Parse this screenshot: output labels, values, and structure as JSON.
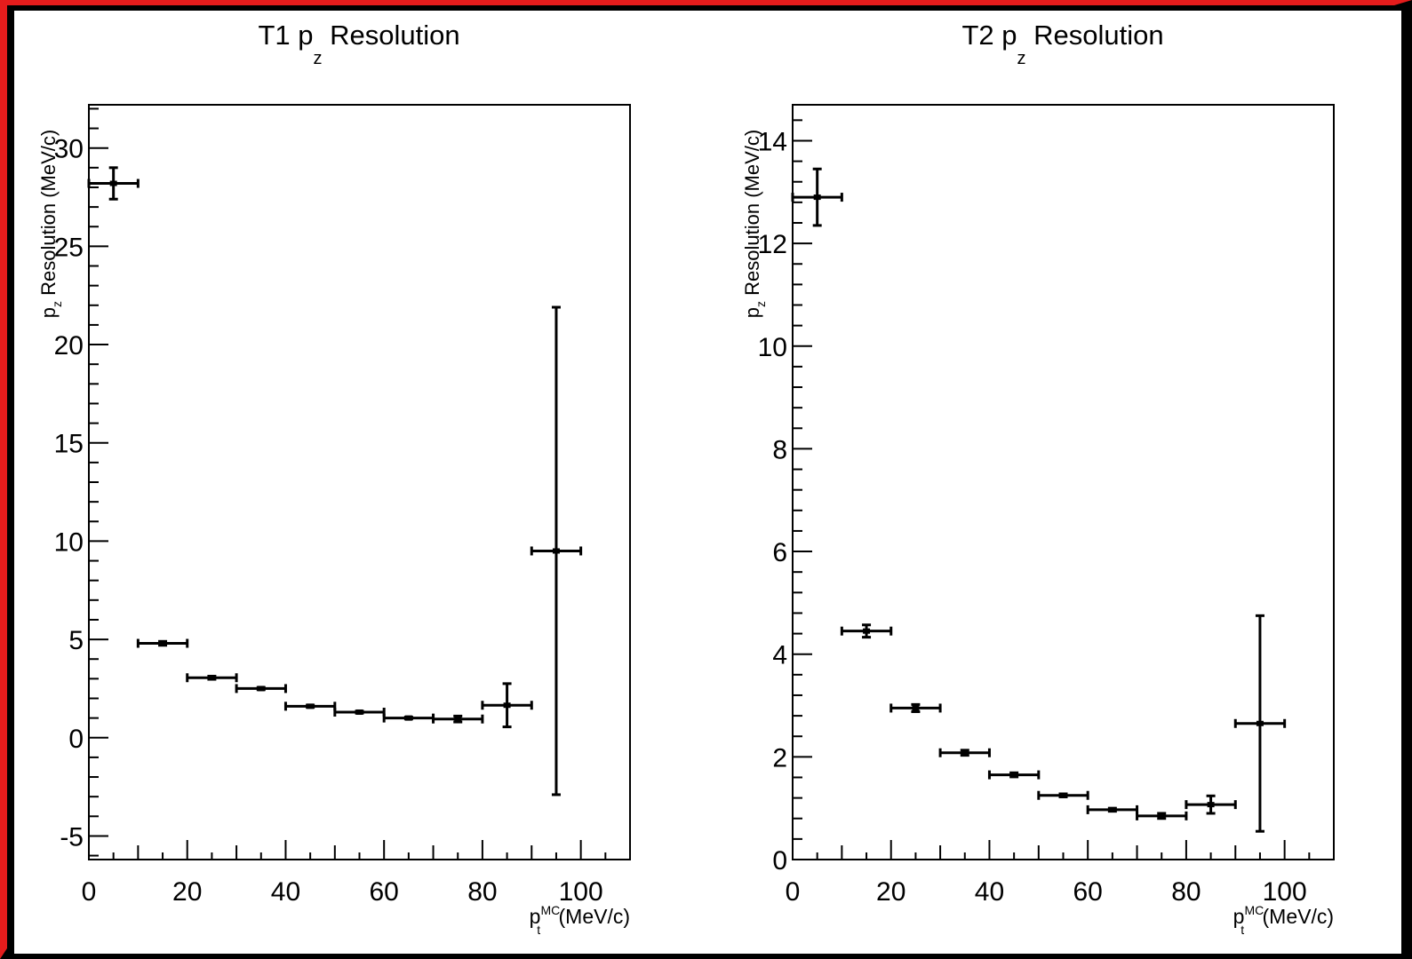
{
  "frame": {
    "border_color": "#e51c1c",
    "background": "#000000"
  },
  "chart_data": [
    {
      "type": "scatter",
      "title_main": "T1 p",
      "title_sub": "z",
      "title_rest": " Resolution",
      "ylabel_main": "p",
      "ylabel_sub": "z",
      "ylabel_rest": " Resolution (MeV/c)",
      "xlabel_main": "p",
      "xlabel_sup": "MC",
      "xlabel_sub": "t",
      "xlabel_rest": " (MeV/c)",
      "xlim": [
        0,
        110
      ],
      "ylim": [
        -6.2,
        32.2
      ],
      "x_ticks": [
        0,
        20,
        40,
        60,
        80,
        100
      ],
      "x_tick_labels": [
        "0",
        "20",
        "40",
        "60",
        "80",
        "100"
      ],
      "y_ticks": [
        -5,
        0,
        5,
        10,
        15,
        20,
        25,
        30
      ],
      "y_tick_labels": [
        "-5",
        "0",
        "5",
        "10",
        "15",
        "20",
        "25",
        "30"
      ],
      "grid": false,
      "points": [
        {
          "x": 5,
          "xerr": 5,
          "y": 28.2,
          "yerr": 0.8
        },
        {
          "x": 15,
          "xerr": 5,
          "y": 4.8,
          "yerr": 0.1
        },
        {
          "x": 25,
          "xerr": 5,
          "y": 3.05,
          "yerr": 0.08
        },
        {
          "x": 35,
          "xerr": 5,
          "y": 2.5,
          "yerr": 0.06
        },
        {
          "x": 45,
          "xerr": 5,
          "y": 1.6,
          "yerr": 0.06
        },
        {
          "x": 55,
          "xerr": 5,
          "y": 1.3,
          "yerr": 0.05
        },
        {
          "x": 65,
          "xerr": 5,
          "y": 1.0,
          "yerr": 0.05
        },
        {
          "x": 75,
          "xerr": 5,
          "y": 0.95,
          "yerr": 0.15
        },
        {
          "x": 85,
          "xerr": 5,
          "y": 1.65,
          "yerr": 1.1
        },
        {
          "x": 95,
          "xerr": 5,
          "y": 9.5,
          "yerr": 12.4
        }
      ]
    },
    {
      "type": "scatter",
      "title_main": "T2 p",
      "title_sub": "z",
      "title_rest": " Resolution",
      "ylabel_main": "p",
      "ylabel_sub": "z",
      "ylabel_rest": " Resolution (MeV/c)",
      "xlabel_main": "p",
      "xlabel_sup": "MC",
      "xlabel_sub": "t",
      "xlabel_rest": " (MeV/c)",
      "xlim": [
        0,
        110
      ],
      "ylim": [
        0,
        14.7
      ],
      "x_ticks": [
        0,
        20,
        40,
        60,
        80,
        100
      ],
      "x_tick_labels": [
        "0",
        "20",
        "40",
        "60",
        "80",
        "100"
      ],
      "y_ticks": [
        0,
        2,
        4,
        6,
        8,
        10,
        12,
        14
      ],
      "y_tick_labels": [
        "0",
        "2",
        "4",
        "6",
        "8",
        "10",
        "12",
        "14"
      ],
      "grid": false,
      "points": [
        {
          "x": 5,
          "xerr": 5,
          "y": 12.9,
          "yerr": 0.55
        },
        {
          "x": 15,
          "xerr": 5,
          "y": 4.45,
          "yerr": 0.12
        },
        {
          "x": 25,
          "xerr": 5,
          "y": 2.95,
          "yerr": 0.07
        },
        {
          "x": 35,
          "xerr": 5,
          "y": 2.08,
          "yerr": 0.05
        },
        {
          "x": 45,
          "xerr": 5,
          "y": 1.65,
          "yerr": 0.04
        },
        {
          "x": 55,
          "xerr": 5,
          "y": 1.25,
          "yerr": 0.03
        },
        {
          "x": 65,
          "xerr": 5,
          "y": 0.97,
          "yerr": 0.03
        },
        {
          "x": 75,
          "xerr": 5,
          "y": 0.85,
          "yerr": 0.05
        },
        {
          "x": 85,
          "xerr": 5,
          "y": 1.07,
          "yerr": 0.17
        },
        {
          "x": 95,
          "xerr": 5,
          "y": 2.65,
          "yerr": 2.1
        }
      ]
    }
  ]
}
